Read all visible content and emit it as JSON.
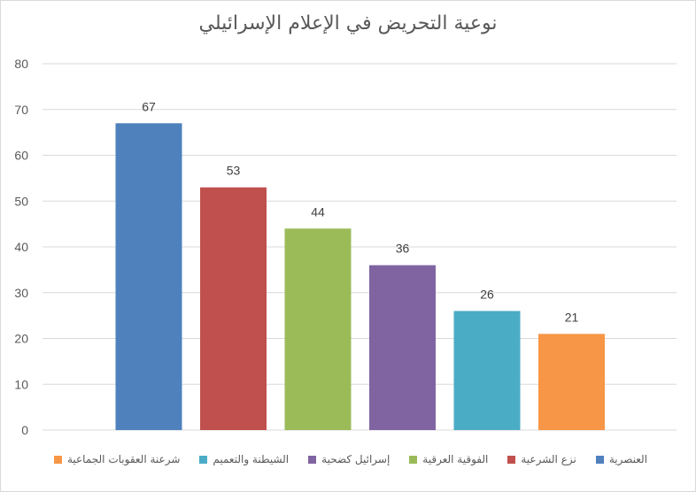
{
  "chart_data": {
    "type": "bar",
    "title": "نوعية التحريض في الإعلام الإسرائيلي",
    "categories": [
      "العنصرية",
      "نزع الشرعية",
      "الفوقية العرقية",
      "إسرائيل كضحية",
      "الشيطنة والتعميم",
      "شرعنة العقوبات الجماعية"
    ],
    "values": [
      67,
      53,
      44,
      36,
      26,
      21
    ],
    "colors": [
      "#4f81bd",
      "#c0504d",
      "#9bbb59",
      "#8064a2",
      "#4bacc6",
      "#f79646"
    ],
    "ylim": [
      0,
      80
    ],
    "yticks": [
      0,
      10,
      20,
      30,
      40,
      50,
      60,
      70,
      80
    ],
    "grid": true,
    "legend_position": "bottom",
    "data_labels": true
  }
}
